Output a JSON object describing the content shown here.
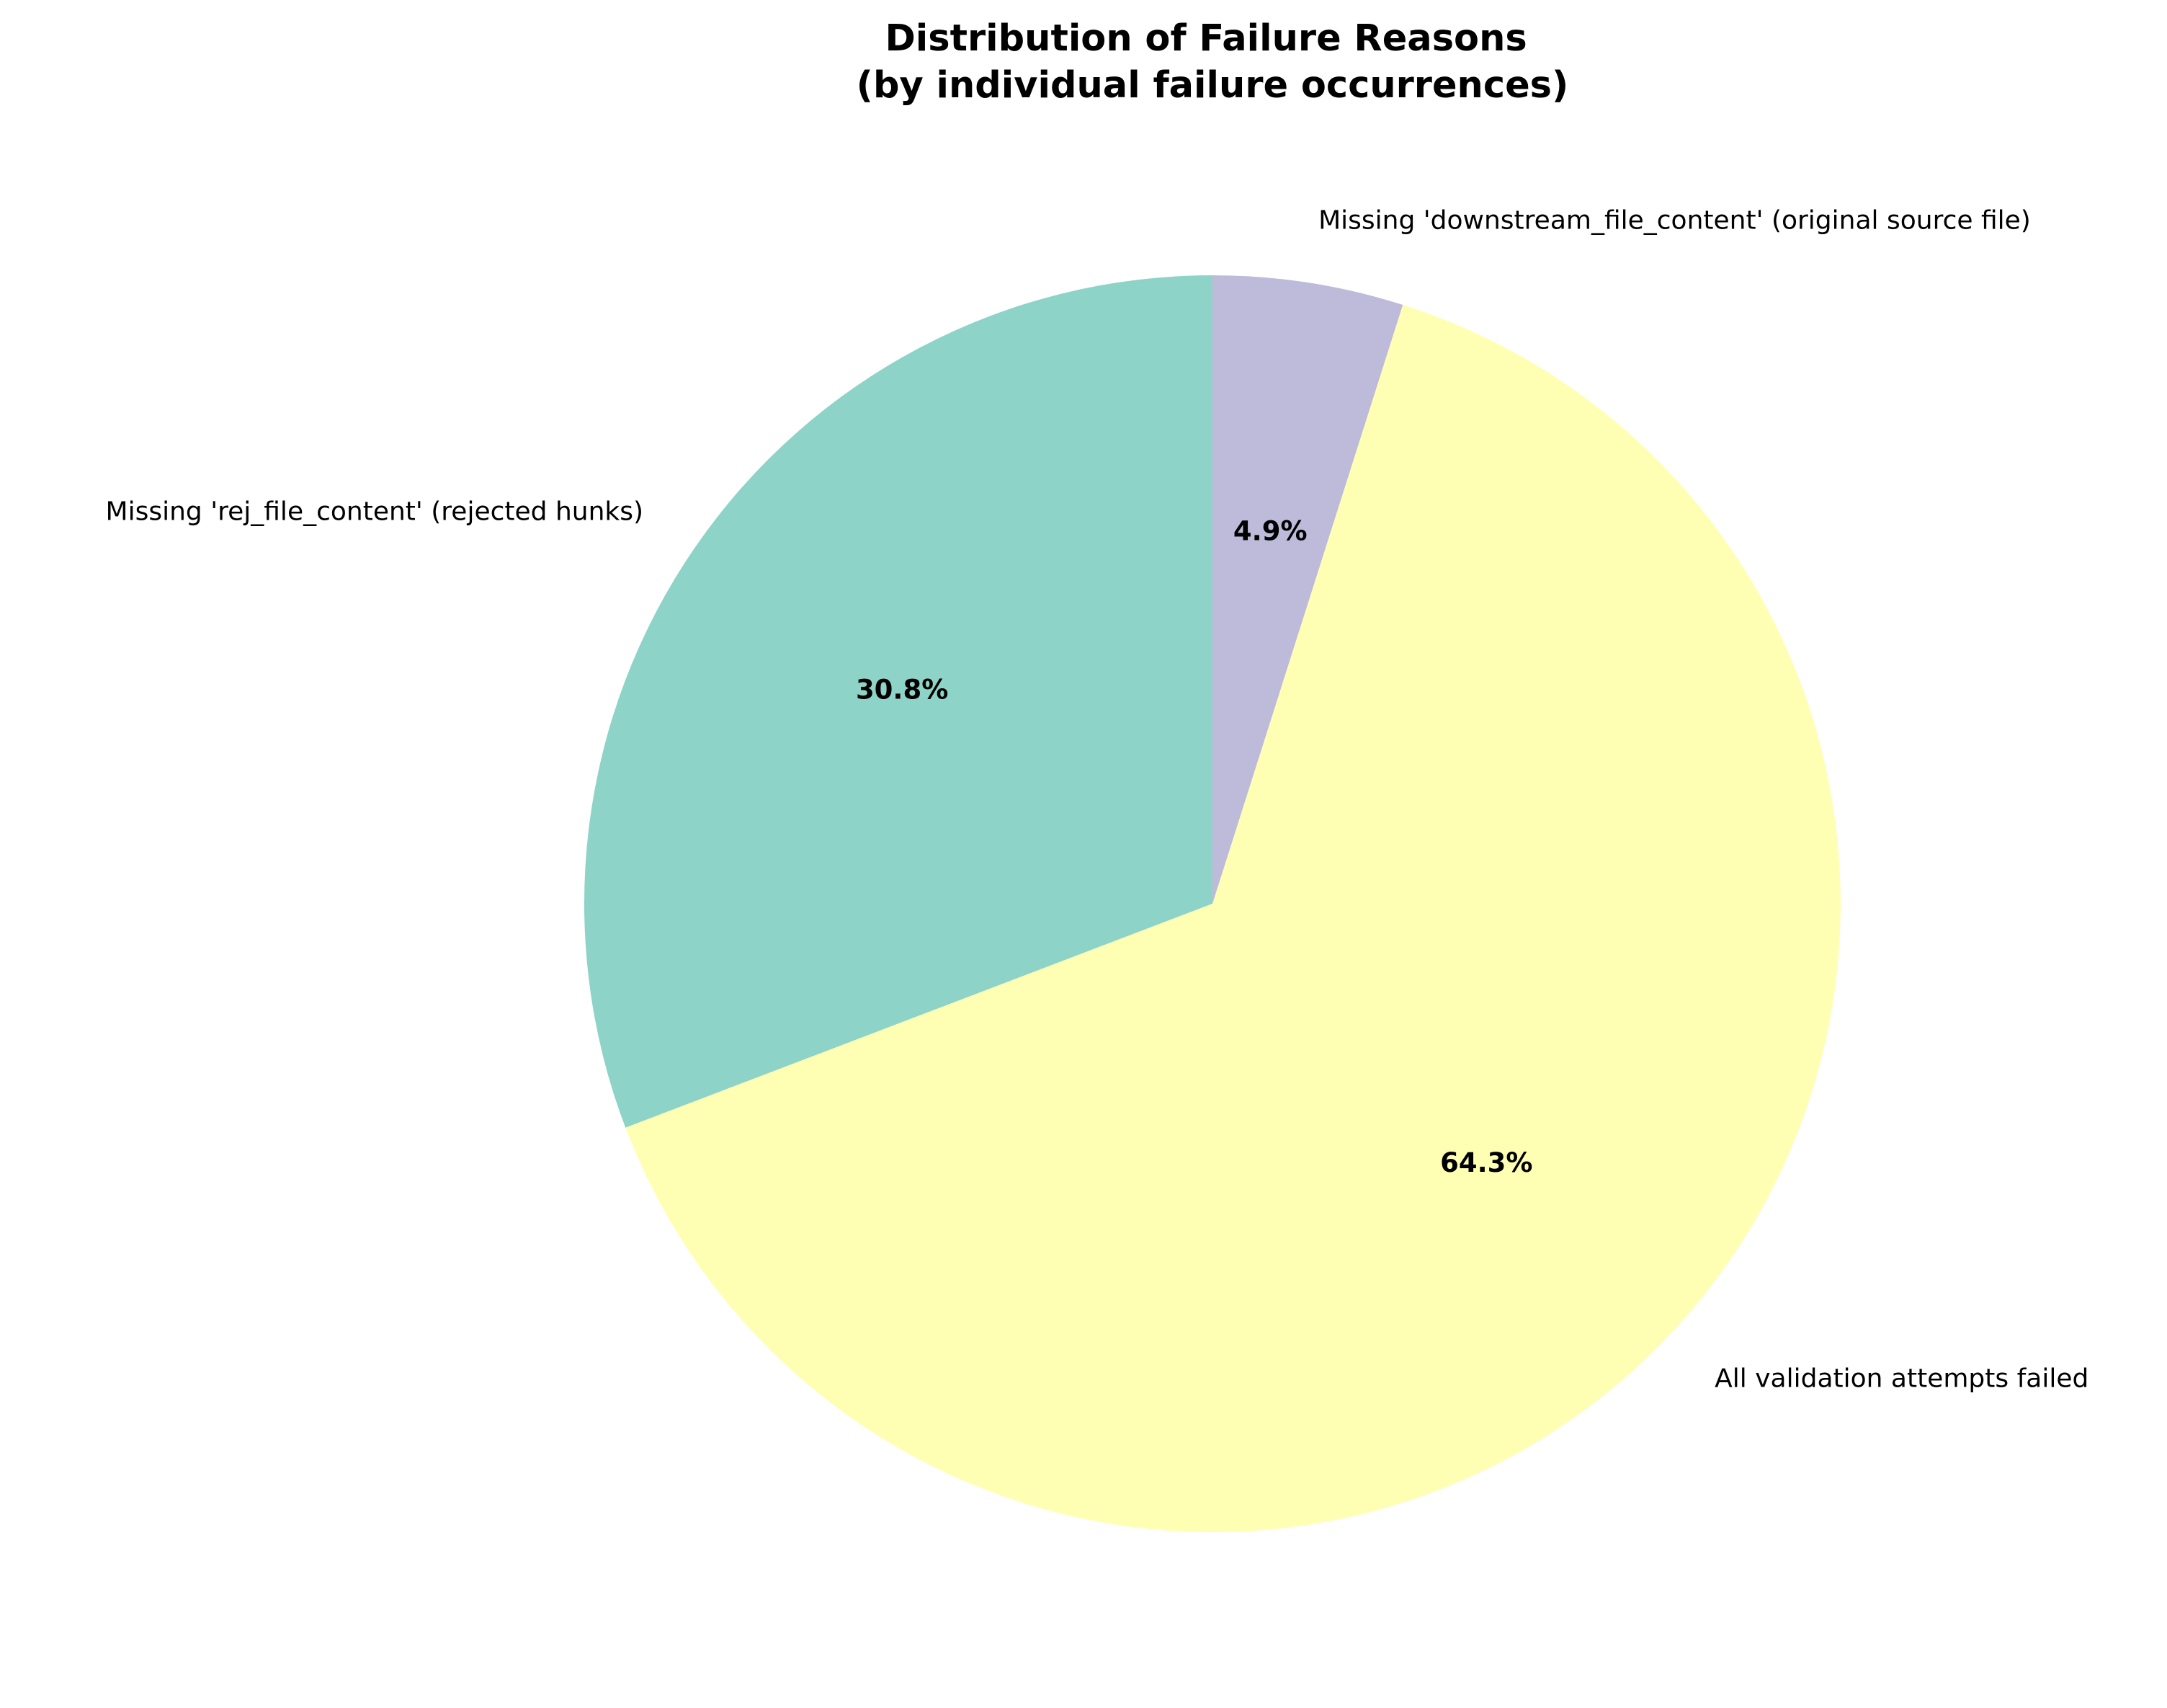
{
  "chart_data": {
    "type": "pie",
    "title_lines": [
      "Distribution of Failure Reasons",
      "(by individual failure occurrences)"
    ],
    "start_angle_deg": 90,
    "direction": "counterclockwise",
    "slices": [
      {
        "label": "Missing 'rej_file_content' (rejected hunks)",
        "value": 30.8,
        "pct_label": "30.8%",
        "color": "#8dd3c7"
      },
      {
        "label": "All validation attempts failed",
        "value": 64.3,
        "pct_label": "64.3%",
        "color": "#ffffb3"
      },
      {
        "label": "Missing 'downstream_file_content' (original source file)",
        "value": 4.9,
        "pct_label": "4.9%",
        "color": "#bebada"
      }
    ]
  }
}
